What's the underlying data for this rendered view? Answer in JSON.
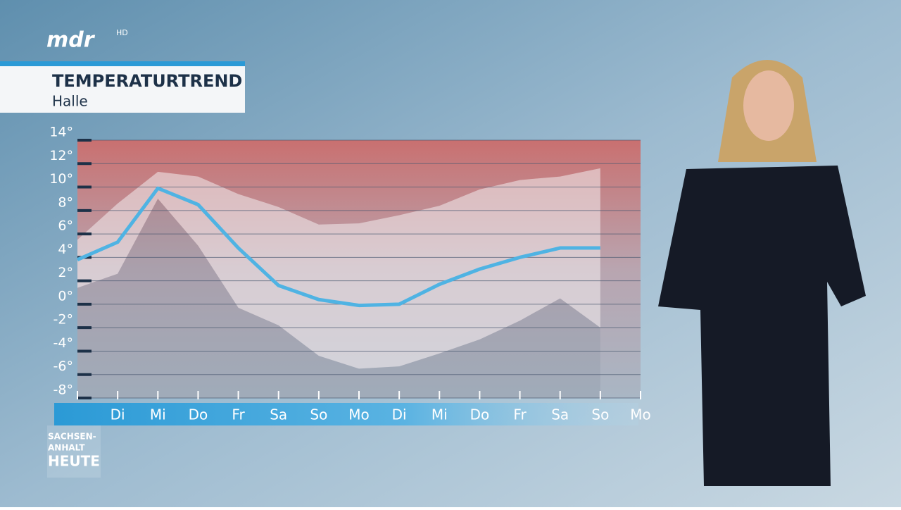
{
  "channel": {
    "logo": "mdr",
    "suffix": "HD"
  },
  "header": {
    "title": "TEMPERATURTREND",
    "subtitle": "Halle"
  },
  "program": {
    "line1": "SACHSEN-",
    "line2": "ANHALT",
    "line3": "HEUTE"
  },
  "chart_data": {
    "type": "line",
    "categories": [
      null,
      "Di",
      "Mi",
      "Do",
      "Fr",
      "Sa",
      "So",
      "Mo",
      "Di",
      "Mi",
      "Do",
      "Fr",
      "Sa",
      "So",
      "Mo"
    ],
    "values": [
      3.8,
      5.3,
      9.9,
      8.5,
      4.8,
      1.6,
      0.4,
      -0.1,
      0,
      1.7,
      3,
      4,
      4.8,
      4.8,
      null
    ],
    "band_upper": [
      5.5,
      8.6,
      11.3,
      10.9,
      9.4,
      8.3,
      6.8,
      6.9,
      7.6,
      8.4,
      9.8,
      10.6,
      10.9,
      11.6,
      null
    ],
    "band_lower": [
      1.4,
      2.6,
      9,
      5,
      -0.3,
      -1.8,
      -4.4,
      -5.5,
      -5.3,
      -4.2,
      -3,
      -1.4,
      0.5,
      -2,
      null
    ],
    "color": "#4fb3e3",
    "ylim": [
      -8,
      14
    ],
    "yticks": [
      {
        "value": -8,
        "label": "-8°"
      },
      {
        "value": -6,
        "label": "-6°"
      },
      {
        "value": -4,
        "label": "-4°"
      },
      {
        "value": -2,
        "label": "-2°"
      },
      {
        "value": 0,
        "label": "0°"
      },
      {
        "value": 2,
        "label": "2°"
      },
      {
        "value": 4,
        "label": "4°"
      },
      {
        "value": 6,
        "label": "6°"
      },
      {
        "value": 8,
        "label": "8°"
      },
      {
        "value": 10,
        "label": "10°"
      },
      {
        "value": 12,
        "label": "12°"
      },
      {
        "value": 14,
        "label": "14°"
      }
    ],
    "grid": true
  }
}
